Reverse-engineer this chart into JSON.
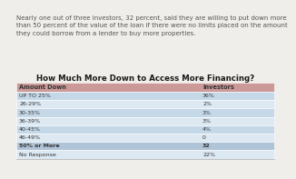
{
  "intro_text": "Nearly one out of three investors, 32 percent, said they are willing to put down more\nthan 50 percent of the value of the loan if there were no limits placed on the amount\nthey could borrow from a lender to buy more properties.",
  "title": "How Much More Down to Access More Financing?",
  "col1_header": "Amount Down",
  "col2_header": "Investors",
  "rows": [
    {
      "label": "UP TO 25%",
      "value": "36%",
      "bold": false
    },
    {
      "label": "26-29%",
      "value": "2%",
      "bold": false
    },
    {
      "label": "30-35%",
      "value": "3%",
      "bold": false
    },
    {
      "label": "36-39%",
      "value": "3%",
      "bold": false
    },
    {
      "label": "40-45%",
      "value": "4%",
      "bold": false
    },
    {
      "label": "46-49%",
      "value": "0",
      "bold": false
    },
    {
      "label": "50% or More",
      "value": "32",
      "bold": true
    },
    {
      "label": "No Response",
      "value": "22%",
      "bold": false
    }
  ],
  "header_bg": "#cc9999",
  "row_alt1_bg": "#c5d8e8",
  "row_alt2_bg": "#dce8f2",
  "bold_row_bg": "#b0c4d8",
  "text_color": "#333333",
  "title_color": "#1a1a1a",
  "intro_color": "#555555",
  "bg_color": "#f0eeea"
}
